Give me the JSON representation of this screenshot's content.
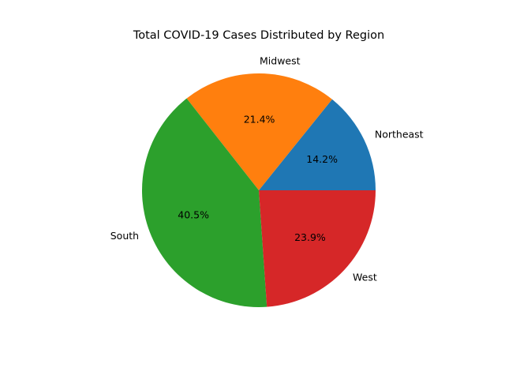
{
  "chart_data": {
    "type": "pie",
    "title": "Total COVID-19 Cases Distributed by Region",
    "categories": [
      "Northeast",
      "Midwest",
      "South",
      "West"
    ],
    "values": [
      14.2,
      21.4,
      40.5,
      23.9
    ],
    "percent_labels": [
      "14.2%",
      "21.4%",
      "40.5%",
      "23.9%"
    ],
    "colors": [
      "#1f77b4",
      "#ff7f0e",
      "#2ca02c",
      "#d62728"
    ],
    "start_angle_deg": 0,
    "direction": "counterclockwise",
    "legend": "none"
  }
}
